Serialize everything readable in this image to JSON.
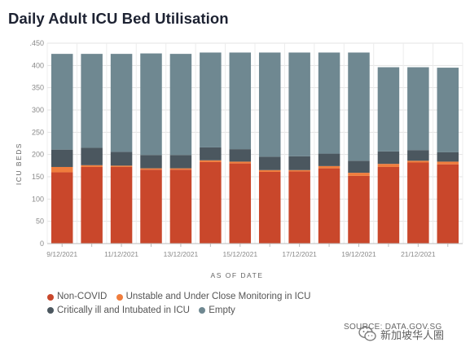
{
  "title": "Daily Adult ICU Bed Utilisation",
  "source": "SOURCE: DATA.GOV.SG",
  "watermark": "新加坡华人圈",
  "legend": [
    {
      "label": "Non-COVID",
      "color": "#c9472b"
    },
    {
      "label": "Unstable and Under Close Monitoring in ICU",
      "color": "#f07d3d"
    },
    {
      "label": "Critically ill and Intubated in ICU",
      "color": "#4b575f"
    },
    {
      "label": "Empty",
      "color": "#6f8891"
    }
  ],
  "chart_data": {
    "type": "bar",
    "stacked": true,
    "title": "Daily Adult ICU Bed Utilisation",
    "xlabel": "AS OF DATE",
    "ylabel": "ICU BEDS",
    "ylim": [
      0,
      450
    ],
    "yticks": [
      0,
      50,
      100,
      150,
      200,
      250,
      300,
      350,
      400,
      450
    ],
    "ytick_labels": [
      "0",
      "50",
      "100",
      "150",
      "200",
      "250",
      "300",
      "350",
      "400",
      ".450"
    ],
    "grid": true,
    "categories": [
      "9/12/2021",
      "10/12/2021",
      "11/12/2021",
      "12/12/2021",
      "13/12/2021",
      "14/12/2021",
      "15/12/2021",
      "16/12/2021",
      "17/12/2021",
      "18/12/2021",
      "19/12/2021",
      "20/12/2021",
      "21/12/2021",
      "22/12/2021"
    ],
    "xtick_labels": [
      "9/12/2021",
      "",
      "11/12/2021",
      "",
      "13/12/2021",
      "",
      "15/12/2021",
      "",
      "17/12/2021",
      "",
      "19/12/2021",
      "",
      "21/12/2021",
      ""
    ],
    "series": [
      {
        "name": "Non-COVID",
        "color": "#c9472b",
        "values": [
          160,
          172,
          172,
          166,
          166,
          183,
          180,
          161,
          162,
          169,
          152,
          172,
          182,
          178
        ]
      },
      {
        "name": "Unstable and Under Close Monitoring in ICU",
        "color": "#f07d3d",
        "values": [
          12,
          4,
          3,
          3,
          3,
          4,
          4,
          4,
          3,
          5,
          7,
          7,
          4,
          6
        ]
      },
      {
        "name": "Critically ill and Intubated in ICU",
        "color": "#4b575f",
        "values": [
          39,
          39,
          31,
          30,
          30,
          29,
          28,
          30,
          31,
          28,
          27,
          28,
          24,
          21
        ]
      },
      {
        "name": "Empty",
        "color": "#6f8891",
        "values": [
          215,
          211,
          220,
          228,
          227,
          213,
          217,
          234,
          233,
          227,
          243,
          189,
          186,
          190
        ]
      }
    ],
    "legend_position": "bottom-left"
  }
}
